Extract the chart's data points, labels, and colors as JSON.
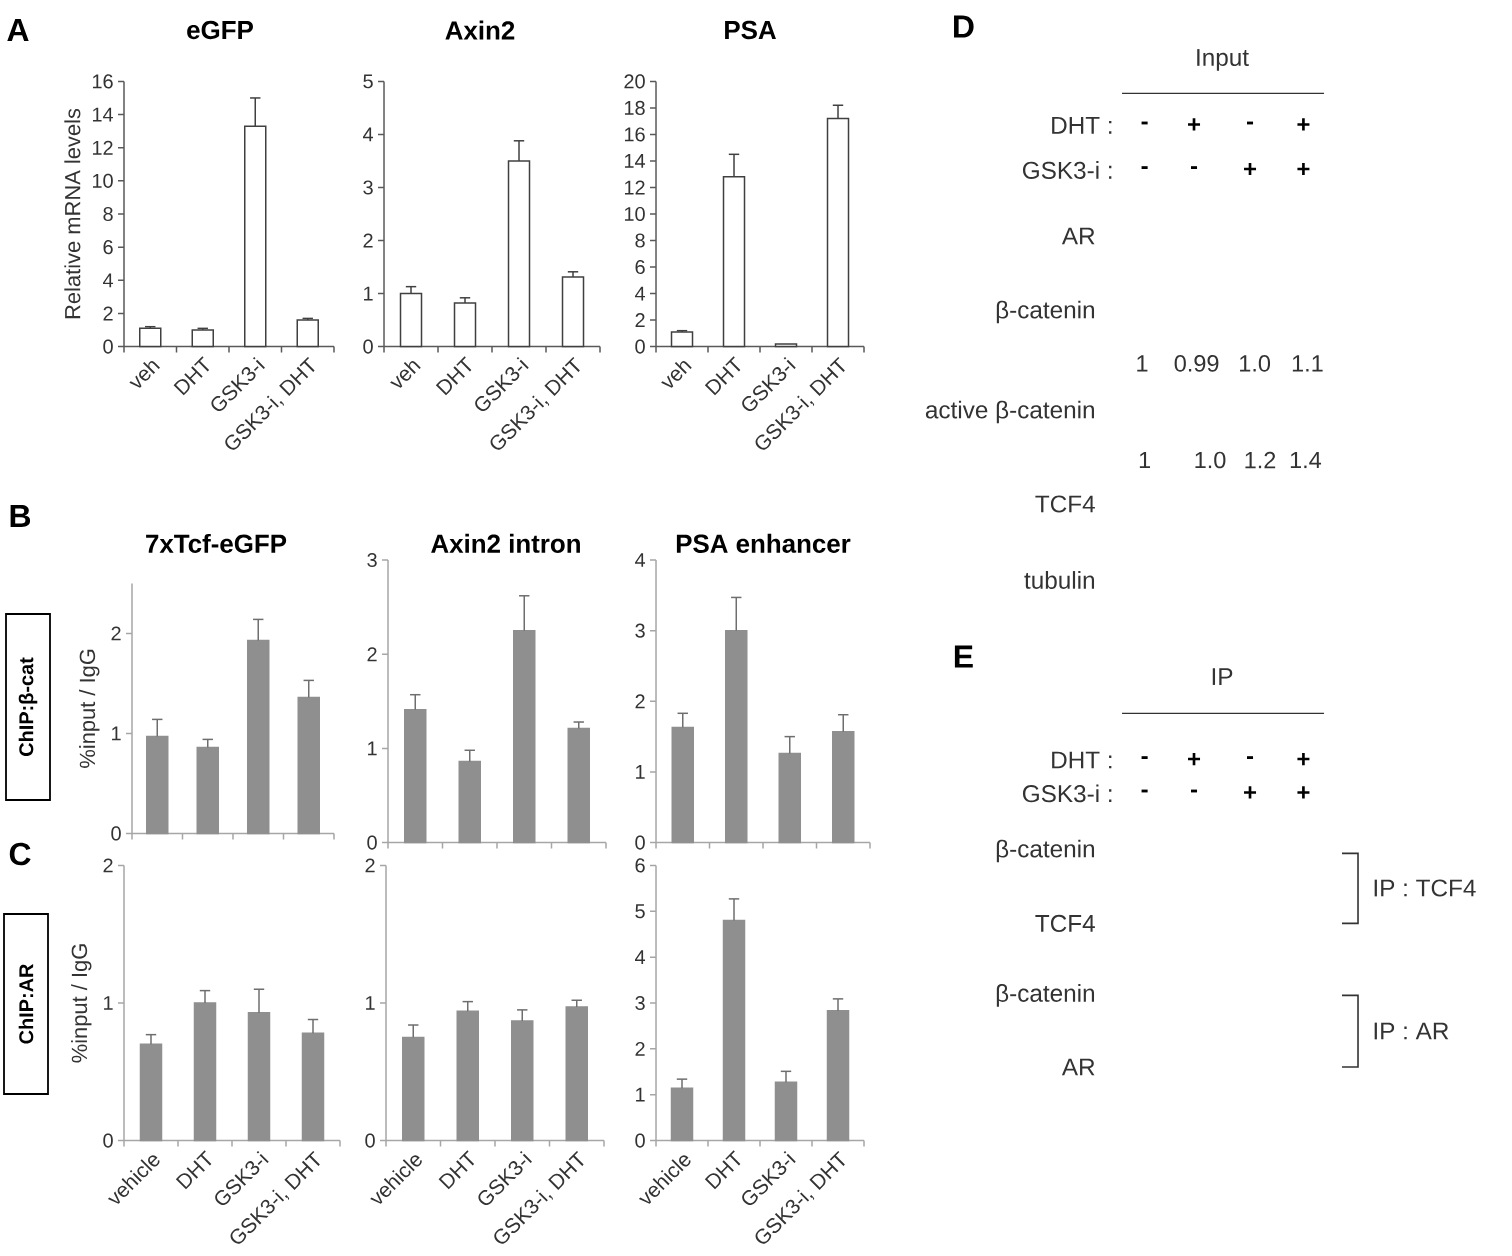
{
  "chart_data": [
    {
      "type": "bar",
      "title": "eGFP",
      "ylabel": "Relative mRNA levels",
      "annotations": [
        "A"
      ],
      "categories": [
        "veh",
        "DHT",
        "GSK3-i",
        "GSK3-i, DHT"
      ],
      "values": [
        1.1,
        1.0,
        13.3,
        1.6
      ],
      "errors": [
        [
          1.1,
          1.2
        ],
        [
          1.0,
          1.1
        ],
        [
          13.3,
          15.0
        ],
        [
          1.6,
          1.7
        ]
      ],
      "color": "#ffffff",
      "ylim": [
        0,
        16
      ],
      "yticks": [
        0,
        2,
        4,
        6,
        8,
        10,
        12,
        14,
        16
      ]
    },
    {
      "type": "bar",
      "title": "Axin2",
      "categories": [
        "veh",
        "DHT",
        "GSK3-i",
        "GSK3-i, DHT"
      ],
      "values": [
        1.0,
        0.82,
        3.5,
        1.31
      ],
      "errors": [
        [
          1.0,
          1.13
        ],
        [
          0.82,
          0.92
        ],
        [
          3.5,
          3.88
        ],
        [
          1.31,
          1.41
        ]
      ],
      "color": "#ffffff",
      "ylim": [
        0,
        5
      ],
      "yticks": [
        0,
        1,
        2,
        3,
        4,
        5
      ]
    },
    {
      "type": "bar",
      "title": "PSA",
      "categories": [
        "veh",
        "DHT",
        "GSK3-i",
        "GSK3-i, DHT"
      ],
      "values": [
        1.1,
        12.8,
        0.2,
        17.2
      ],
      "errors": [
        [
          1.1,
          1.2
        ],
        [
          12.8,
          14.5
        ],
        null,
        [
          17.2,
          18.2
        ]
      ],
      "color": "#ffffff",
      "ylim": [
        0,
        20
      ],
      "yticks": [
        0,
        2,
        4,
        6,
        8,
        10,
        12,
        14,
        16,
        18,
        20
      ]
    },
    {
      "type": "bar",
      "title": "7xTcf-eGFP",
      "ylabel": "%input / IgG",
      "annotations": [
        "B",
        "ChIP:β-cat"
      ],
      "categories": [
        null,
        null,
        null,
        null
      ],
      "values": [
        0.97,
        0.86,
        1.93,
        1.36
      ],
      "errors": [
        [
          0.97,
          1.14
        ],
        [
          0.86,
          0.94
        ],
        [
          1.93,
          2.14
        ],
        [
          1.36,
          1.53
        ]
      ],
      "color": "#8f8f8f",
      "ylim": [
        0,
        2.5
      ],
      "yticks": [
        0,
        1,
        2
      ]
    },
    {
      "type": "bar",
      "title": "Axin2 intron",
      "categories": [
        null,
        null,
        null,
        null
      ],
      "values": [
        1.41,
        0.86,
        2.25,
        1.21
      ],
      "errors": [
        [
          1.41,
          1.57
        ],
        [
          0.86,
          0.98
        ],
        [
          2.25,
          2.62
        ],
        [
          1.21,
          1.28
        ]
      ],
      "color": "#8f8f8f",
      "ylim": [
        0,
        3
      ],
      "yticks": [
        0,
        1,
        2,
        3
      ]
    },
    {
      "type": "bar",
      "title": "PSA enhancer",
      "categories": [
        null,
        null,
        null,
        null
      ],
      "values": [
        1.63,
        3.0,
        1.26,
        1.57
      ],
      "errors": [
        [
          1.63,
          1.83
        ],
        [
          3.0,
          3.47
        ],
        [
          1.26,
          1.5
        ],
        [
          1.57,
          1.81
        ]
      ],
      "color": "#8f8f8f",
      "ylim": [
        0,
        4
      ],
      "yticks": [
        0,
        1,
        2,
        3,
        4
      ]
    },
    {
      "type": "bar",
      "ylabel": "%input / IgG",
      "annotations": [
        "C",
        "ChIP:AR"
      ],
      "categories": [
        "vehicle",
        "DHT",
        "GSK3-i",
        "GSK3-i, DHT"
      ],
      "values": [
        0.7,
        1.0,
        0.93,
        0.78
      ],
      "errors": [
        [
          0.7,
          0.77
        ],
        [
          1.0,
          1.09
        ],
        [
          0.93,
          1.1
        ],
        [
          0.78,
          0.88
        ]
      ],
      "color": "#8f8f8f",
      "ylim": [
        0,
        2
      ],
      "yticks": [
        0,
        1,
        2
      ]
    },
    {
      "type": "bar",
      "categories": [
        "vehicle",
        "DHT",
        "GSK3-i",
        "GSK3-i, DHT"
      ],
      "values": [
        0.75,
        0.94,
        0.87,
        0.97
      ],
      "errors": [
        [
          0.75,
          0.84
        ],
        [
          0.94,
          1.01
        ],
        [
          0.87,
          0.95
        ],
        [
          0.97,
          1.02
        ]
      ],
      "color": "#8f8f8f",
      "ylim": [
        0,
        2
      ],
      "yticks": [
        0,
        1,
        2
      ]
    },
    {
      "type": "bar",
      "categories": [
        "vehicle",
        "DHT",
        "GSK3-i",
        "GSK3-i, DHT"
      ],
      "values": [
        1.14,
        4.8,
        1.27,
        2.83
      ],
      "errors": [
        [
          1.14,
          1.34
        ],
        [
          4.8,
          5.27
        ],
        [
          1.27,
          1.51
        ],
        [
          2.83,
          3.09
        ]
      ],
      "color": "#8f8f8f",
      "ylim": [
        0,
        6
      ],
      "yticks": [
        0,
        1,
        2,
        3,
        4,
        5,
        6
      ]
    },
    {
      "type": "other",
      "title": "Input",
      "annotations": [
        "D",
        "DHT :",
        "-",
        "+",
        "-",
        "+",
        "GSK3-i :",
        "-",
        "-",
        "+",
        "+",
        "AR",
        "β-catenin",
        "1",
        "0.99",
        "1.0",
        "1.1",
        "active β-catenin",
        "1",
        "1.0",
        "1.2",
        "1.4",
        "TCF4",
        "tubulin"
      ]
    },
    {
      "type": "other",
      "title": "IP",
      "annotations": [
        "E",
        "DHT :",
        "-",
        "+",
        "-",
        "+",
        "GSK3-i :",
        "-",
        "-",
        "+",
        "+",
        "β-catenin",
        "TCF4",
        "β-catenin",
        "AR",
        "IP : TCF4",
        "IP : AR"
      ]
    }
  ]
}
